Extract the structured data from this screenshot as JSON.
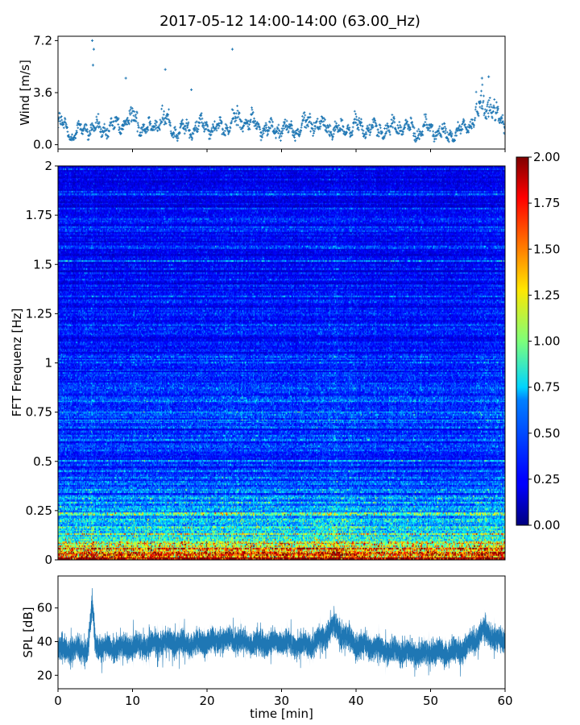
{
  "title": "2017-05-12 14:00-14:00 (63.00_Hz)",
  "chart_data": [
    {
      "type": "scatter",
      "name": "wind",
      "ylabel": "Wind [m/s]",
      "xlim": [
        0,
        60
      ],
      "ylim": [
        -0.3,
        7.5
      ],
      "yticks": [
        "0.0",
        "3.6",
        "7.2"
      ],
      "ytick_values": [
        0.0,
        3.6,
        7.2
      ],
      "color": "#1f77b4",
      "baseline_profile": {
        "x": [
          0,
          2,
          4,
          6,
          8,
          10,
          12,
          14,
          16,
          18,
          20,
          22,
          24,
          26,
          28,
          30,
          32,
          34,
          36,
          38,
          40,
          42,
          44,
          46,
          48,
          50,
          52,
          54,
          56,
          57,
          58,
          60
        ],
        "y": [
          1.5,
          0.7,
          1.2,
          1.0,
          1.3,
          1.9,
          1.0,
          1.8,
          0.9,
          1.1,
          1.4,
          1.0,
          1.8,
          1.5,
          1.0,
          1.2,
          1.0,
          1.6,
          1.2,
          1.0,
          1.3,
          1.1,
          1.0,
          1.3,
          0.9,
          1.2,
          0.6,
          0.9,
          1.9,
          3.1,
          2.5,
          1.5
        ]
      },
      "peaks": [
        {
          "x": 4.6,
          "y": 7.2
        },
        {
          "x": 4.8,
          "y": 6.6
        },
        {
          "x": 4.7,
          "y": 5.5
        },
        {
          "x": 14.4,
          "y": 5.2
        },
        {
          "x": 23.4,
          "y": 6.6
        },
        {
          "x": 9.1,
          "y": 4.6
        },
        {
          "x": 17.9,
          "y": 3.8
        },
        {
          "x": 56.9,
          "y": 4.6
        },
        {
          "x": 57.8,
          "y": 4.7
        }
      ]
    },
    {
      "type": "heatmap",
      "name": "spectrogram",
      "ylabel": "FFT Frequenz [Hz]",
      "xlim": [
        0,
        60
      ],
      "ylim": [
        0,
        2
      ],
      "yticks": [
        "0",
        "0.25",
        "0.5",
        "0.75",
        "1",
        "1.25",
        "1.5",
        "1.75",
        "2"
      ],
      "ytick_values": [
        0,
        0.25,
        0.5,
        0.75,
        1,
        1.25,
        1.5,
        1.75,
        2
      ],
      "colormap": "jet",
      "colorbar": {
        "vmin": 0,
        "vmax": 2,
        "ticks": [
          "0.00",
          "0.25",
          "0.50",
          "0.75",
          "1.00",
          "1.25",
          "1.50",
          "1.75",
          "2.00"
        ],
        "tick_values": [
          0,
          0.25,
          0.5,
          0.75,
          1,
          1.25,
          1.5,
          1.75,
          2
        ]
      },
      "typical_level": {
        "frequency_hz": [
          0.0,
          0.02,
          0.05,
          0.1,
          0.2,
          0.3,
          0.5,
          0.8,
          1.0,
          1.5,
          2.0
        ],
        "value": [
          1.9,
          1.6,
          1.1,
          0.75,
          0.5,
          0.45,
          0.35,
          0.35,
          0.3,
          0.25,
          0.22
        ]
      }
    },
    {
      "type": "line",
      "name": "spl",
      "ylabel": "SPL [dB]",
      "xlabel": "time [min]",
      "xlim": [
        0,
        60
      ],
      "ylim": [
        12,
        79
      ],
      "xticks": [
        "0",
        "10",
        "20",
        "30",
        "40",
        "50",
        "60"
      ],
      "xtick_values": [
        0,
        10,
        20,
        30,
        40,
        50,
        60
      ],
      "yticks": [
        "20",
        "40",
        "60"
      ],
      "ytick_values": [
        20,
        40,
        60
      ],
      "color": "#1f77b4",
      "profile": {
        "x": [
          0,
          2,
          4,
          4.6,
          5,
          6,
          8,
          10,
          12,
          14,
          16,
          18,
          20,
          22,
          24,
          26,
          28,
          30,
          32,
          34,
          36,
          37,
          38,
          40,
          42,
          44,
          46,
          48,
          50,
          52,
          54,
          56,
          57,
          58,
          60
        ],
        "y": [
          36,
          35,
          35,
          62,
          38,
          36,
          37,
          37,
          38,
          39,
          40,
          38,
          40,
          41,
          41,
          39,
          39,
          40,
          38,
          38,
          44,
          50,
          45,
          38,
          37,
          35,
          34,
          33,
          34,
          33,
          35,
          40,
          47,
          44,
          39
        ]
      }
    }
  ]
}
